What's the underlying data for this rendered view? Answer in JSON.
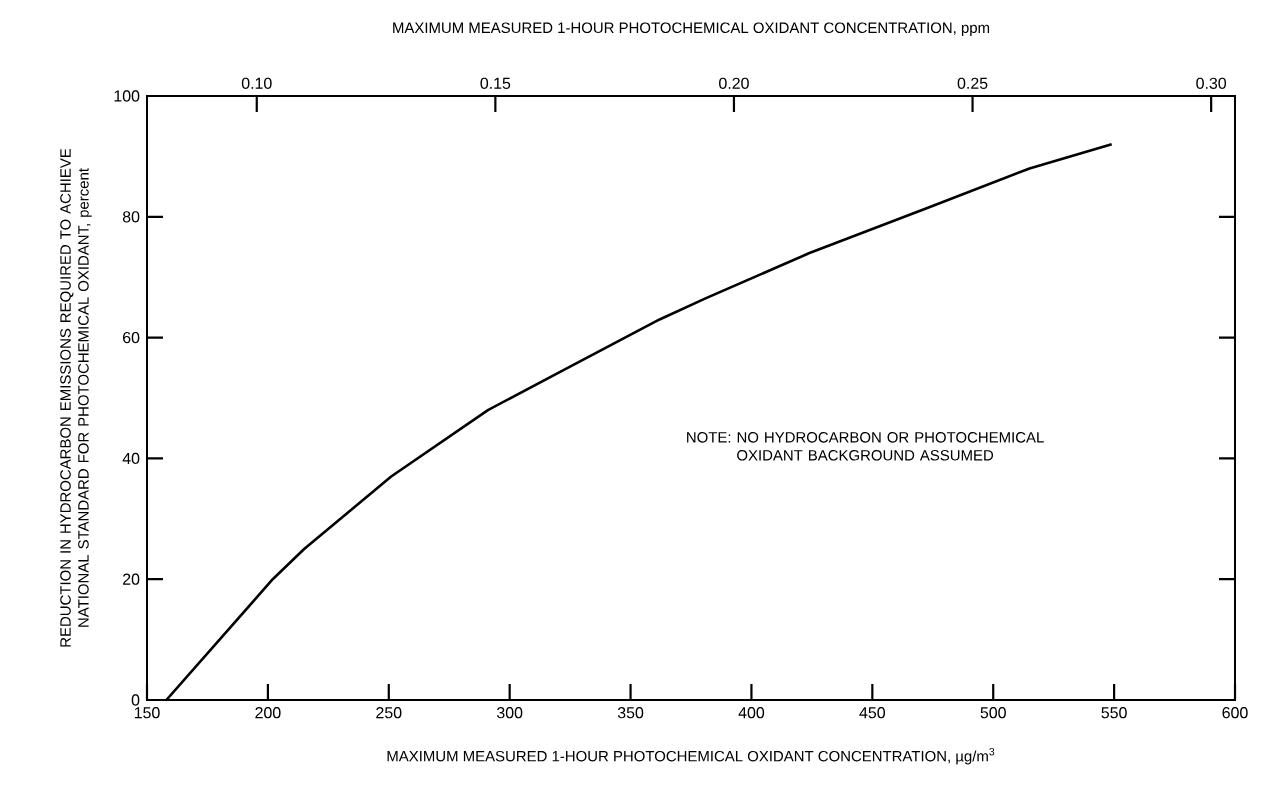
{
  "chart_data": {
    "type": "line",
    "xlabel": "MAXIMUM MEASURED 1-HOUR PHOTOCHEMICAL OXIDANT CONCENTRATION, µg/m$^{3}$",
    "x2label": "MAXIMUM MEASURED 1-HOUR PHOTOCHEMICAL OXIDANT CONCENTRATION, ppm",
    "ylabel": "REDUCTION IN HYDROCARBON EMISSIONS REQUIRED TO ACHIEVE NATIONAL STANDARD FOR PHOTOCHEMICAL OXIDANT, percent",
    "annotations": [
      "NOTE: NO HYDROCARBON OR PHOTOCHEMICAL OXIDANT BACKGROUND ASSUMED"
    ],
    "x": [
      158,
      202,
      215,
      251,
      291,
      324,
      362,
      381,
      424,
      473,
      515,
      549
    ],
    "series": [
      {
        "color": "#000000",
        "values": [
          0,
          20,
          25,
          37,
          48,
          55,
          63,
          66.5,
          74,
          81.5,
          88,
          92
        ]
      }
    ],
    "xlim": [
      150,
      600
    ],
    "xticks": [
      150,
      200,
      250,
      300,
      350,
      400,
      450,
      500,
      550,
      600
    ],
    "x2lim": [
      0.077,
      0.305
    ],
    "x2ticks": [
      {
        "value": 0.1,
        "label": "0.10"
      },
      {
        "value": 0.15,
        "label": "0.15"
      },
      {
        "value": 0.2,
        "label": "0.20"
      },
      {
        "value": 0.25,
        "label": "0.25"
      },
      {
        "value": 0.3,
        "label": "0.30"
      }
    ],
    "ylim": [
      0,
      100
    ],
    "yticks": [
      0,
      20,
      40,
      60,
      80,
      100
    ],
    "grid": false,
    "marker": "none",
    "line_style": "solid"
  }
}
